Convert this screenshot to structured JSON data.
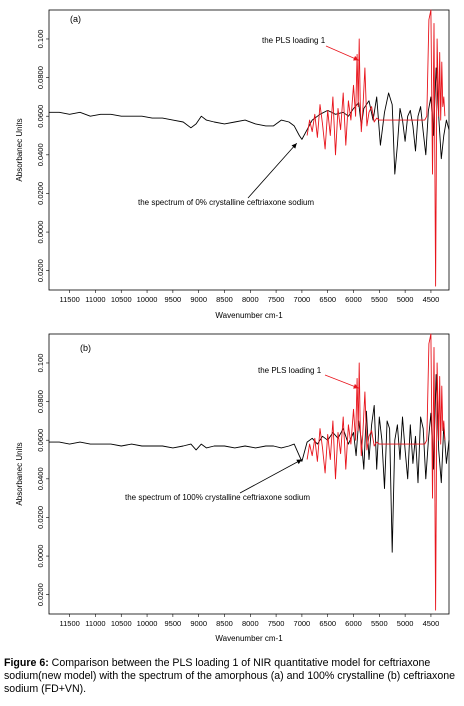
{
  "figure": {
    "caption_label": "Figure 6:",
    "caption_text": " Comparison between the PLS loading 1 of NIR quantitative model for ceftriaxone sodium(new model) with the spectrum of the amorphous (a) and 100% crystalline (b) ceftriaxone sodium (FD+VN)."
  },
  "chart_data": [
    {
      "type": "line",
      "panel_label": "(a)",
      "xlabel": "Wavenumber cm-1",
      "ylabel": "Absorbanec Units",
      "x_reversed": true,
      "xlim": [
        11900,
        4150
      ],
      "ylim": [
        -0.03,
        0.115
      ],
      "x_ticks": [
        11500,
        11000,
        10500,
        10000,
        9500,
        9000,
        8500,
        8000,
        7500,
        7000,
        6500,
        6000,
        5500,
        5000,
        4500
      ],
      "x_tick_labels": [
        "11500",
        "11000",
        "10500",
        "10000",
        "9500",
        "9000",
        "8500",
        "8000",
        "7500",
        "7000",
        "6500",
        "6000",
        "5500",
        "5000",
        "4500"
      ],
      "y_ticks": [
        -0.02,
        0.0,
        0.02,
        0.04,
        0.06,
        0.08,
        0.1
      ],
      "y_tick_labels": [
        "0.0200",
        "0.0000",
        "0.0200",
        "0.0400",
        "0.0600",
        "0.0800",
        "0.100"
      ],
      "series": [
        {
          "color": "#000000",
          "x": [
            11900,
            11700,
            11500,
            11300,
            11100,
            10900,
            10700,
            10500,
            10300,
            10100,
            9900,
            9700,
            9500,
            9300,
            9150,
            9050,
            8950,
            8850,
            8700,
            8500,
            8300,
            8100,
            7900,
            7700,
            7550,
            7400,
            7250,
            7150,
            7050,
            7000,
            6900,
            6800,
            6650,
            6500,
            6350,
            6200,
            6100,
            6000,
            5900,
            5850,
            5800,
            5700,
            5620,
            5550,
            5480,
            5400,
            5320,
            5250,
            5200,
            5150,
            5100,
            5050,
            5000,
            4950,
            4900,
            4850,
            4800,
            4750,
            4700,
            4650,
            4600,
            4550,
            4500,
            4450,
            4400,
            4350,
            4300,
            4250,
            4200,
            4150
          ],
          "y": [
            0.062,
            0.062,
            0.061,
            0.062,
            0.06,
            0.061,
            0.061,
            0.06,
            0.06,
            0.06,
            0.059,
            0.059,
            0.058,
            0.057,
            0.054,
            0.056,
            0.06,
            0.058,
            0.057,
            0.056,
            0.057,
            0.058,
            0.056,
            0.055,
            0.055,
            0.058,
            0.057,
            0.055,
            0.05,
            0.048,
            0.053,
            0.058,
            0.061,
            0.063,
            0.061,
            0.062,
            0.06,
            0.064,
            0.067,
            0.055,
            0.064,
            0.068,
            0.058,
            0.07,
            0.045,
            0.062,
            0.072,
            0.066,
            0.03,
            0.045,
            0.064,
            0.058,
            0.047,
            0.06,
            0.063,
            0.055,
            0.042,
            0.06,
            0.065,
            0.052,
            0.04,
            0.063,
            0.07,
            0.05,
            0.085,
            0.06,
            0.038,
            0.05,
            0.058,
            0.053
          ]
        },
        {
          "color": "#e8141c",
          "x": [
            6900,
            6850,
            6800,
            6750,
            6700,
            6650,
            6600,
            6550,
            6500,
            6450,
            6400,
            6350,
            6300,
            6250,
            6200,
            6150,
            6100,
            6050,
            6000,
            5960,
            5930,
            5910,
            5890,
            5870,
            5850,
            5820,
            5780,
            5740,
            5700,
            5650,
            5600,
            5550,
            5500,
            5450,
            5400,
            5350,
            5300,
            5250,
            5200,
            5150,
            5100,
            5050,
            5000,
            4950,
            4900,
            4850,
            4800,
            4750,
            4700,
            4660,
            4620,
            4580,
            4540,
            4500,
            4470,
            4440,
            4410,
            4380,
            4350,
            4330,
            4310,
            4290,
            4270,
            4250,
            4230
          ],
          "y": [
            0.05,
            0.058,
            0.052,
            0.061,
            0.049,
            0.066,
            0.056,
            0.043,
            0.063,
            0.05,
            0.07,
            0.04,
            0.064,
            0.053,
            0.072,
            0.045,
            0.068,
            0.058,
            0.076,
            0.06,
            0.092,
            0.065,
            0.1,
            0.068,
            0.052,
            0.063,
            0.085,
            0.055,
            0.062,
            0.065,
            0.057,
            0.059,
            0.058,
            0.058,
            0.058,
            0.058,
            0.058,
            0.058,
            0.058,
            0.058,
            0.058,
            0.058,
            0.058,
            0.058,
            0.058,
            0.058,
            0.058,
            0.058,
            0.058,
            0.058,
            0.058,
            0.06,
            0.11,
            0.115,
            0.03,
            0.108,
            -0.028,
            0.1,
            0.06,
            0.093,
            0.058,
            0.088,
            0.065,
            0.07,
            0.06
          ]
        }
      ],
      "annotations": [
        {
          "text": "the PLS loading 1",
          "data_x": 5900,
          "data_y": 0.089,
          "color": "#e8141c"
        },
        {
          "text": "the spectrum of 0% crystalline ceftriaxone sodium",
          "data_x": 7100,
          "data_y": 0.046,
          "color": "#000000"
        }
      ]
    },
    {
      "type": "line",
      "panel_label": "(b)",
      "xlabel": "Wavenumber cm-1",
      "ylabel": "Absorbanec Units",
      "x_reversed": true,
      "xlim": [
        11900,
        4150
      ],
      "ylim": [
        -0.03,
        0.115
      ],
      "x_ticks": [
        11500,
        11000,
        10500,
        10000,
        9500,
        9000,
        8500,
        8000,
        7500,
        7000,
        6500,
        6000,
        5500,
        5000,
        4500
      ],
      "x_tick_labels": [
        "11500",
        "11000",
        "10500",
        "10000",
        "9500",
        "9000",
        "8500",
        "8000",
        "7500",
        "7000",
        "6500",
        "6000",
        "5500",
        "5000",
        "4500"
      ],
      "y_ticks": [
        -0.02,
        0.0,
        0.02,
        0.04,
        0.06,
        0.08,
        0.1
      ],
      "y_tick_labels": [
        "0.0200",
        "0.0000",
        "0.0200",
        "0.0400",
        "0.0600",
        "0.0800",
        "0.100"
      ],
      "series": [
        {
          "color": "#000000",
          "x": [
            11900,
            11700,
            11500,
            11300,
            11100,
            10900,
            10700,
            10500,
            10300,
            10100,
            9900,
            9700,
            9500,
            9300,
            9150,
            9050,
            8950,
            8850,
            8700,
            8500,
            8300,
            8100,
            7900,
            7700,
            7550,
            7400,
            7250,
            7150,
            7050,
            7000,
            6950,
            6900,
            6800,
            6700,
            6600,
            6500,
            6400,
            6300,
            6200,
            6100,
            6000,
            5950,
            5900,
            5850,
            5800,
            5750,
            5700,
            5650,
            5600,
            5550,
            5500,
            5450,
            5400,
            5350,
            5300,
            5250,
            5200,
            5150,
            5100,
            5050,
            5000,
            4950,
            4900,
            4850,
            4800,
            4750,
            4700,
            4650,
            4600,
            4550,
            4500,
            4450,
            4400,
            4350,
            4300,
            4250,
            4200,
            4150
          ],
          "y": [
            0.059,
            0.059,
            0.058,
            0.059,
            0.058,
            0.058,
            0.058,
            0.057,
            0.058,
            0.057,
            0.057,
            0.057,
            0.056,
            0.057,
            0.058,
            0.055,
            0.058,
            0.056,
            0.057,
            0.057,
            0.056,
            0.057,
            0.056,
            0.057,
            0.057,
            0.056,
            0.057,
            0.058,
            0.052,
            0.049,
            0.054,
            0.059,
            0.061,
            0.058,
            0.062,
            0.06,
            0.064,
            0.061,
            0.066,
            0.058,
            0.064,
            0.052,
            0.07,
            0.06,
            0.045,
            0.075,
            0.05,
            0.068,
            0.078,
            0.045,
            0.072,
            0.06,
            0.035,
            0.07,
            0.066,
            0.002,
            0.06,
            0.068,
            0.05,
            0.072,
            0.055,
            0.04,
            0.068,
            0.048,
            0.062,
            0.038,
            0.072,
            0.066,
            0.04,
            0.06,
            0.074,
            0.045,
            0.094,
            0.055,
            0.038,
            0.068,
            0.048,
            0.06
          ]
        },
        {
          "color": "#e8141c",
          "x": [
            6900,
            6850,
            6800,
            6750,
            6700,
            6650,
            6600,
            6550,
            6500,
            6450,
            6400,
            6350,
            6300,
            6250,
            6200,
            6150,
            6100,
            6050,
            6000,
            5960,
            5930,
            5910,
            5890,
            5870,
            5850,
            5820,
            5780,
            5740,
            5700,
            5650,
            5600,
            5550,
            5500,
            5450,
            5400,
            5350,
            5300,
            5250,
            5200,
            5150,
            5100,
            5050,
            5000,
            4950,
            4900,
            4850,
            4800,
            4750,
            4700,
            4660,
            4620,
            4580,
            4540,
            4500,
            4470,
            4440,
            4410,
            4380,
            4350,
            4330,
            4310,
            4290,
            4270,
            4250,
            4230
          ],
          "y": [
            0.05,
            0.058,
            0.052,
            0.061,
            0.049,
            0.066,
            0.056,
            0.043,
            0.063,
            0.05,
            0.07,
            0.04,
            0.064,
            0.053,
            0.072,
            0.045,
            0.068,
            0.058,
            0.076,
            0.06,
            0.092,
            0.065,
            0.1,
            0.068,
            0.052,
            0.063,
            0.085,
            0.055,
            0.062,
            0.065,
            0.057,
            0.059,
            0.058,
            0.058,
            0.058,
            0.058,
            0.058,
            0.058,
            0.058,
            0.058,
            0.058,
            0.058,
            0.058,
            0.058,
            0.058,
            0.058,
            0.058,
            0.058,
            0.058,
            0.058,
            0.058,
            0.06,
            0.11,
            0.115,
            0.03,
            0.108,
            -0.028,
            0.1,
            0.06,
            0.093,
            0.058,
            0.088,
            0.065,
            0.07,
            0.06
          ]
        }
      ],
      "annotations": [
        {
          "text": "the PLS loading 1",
          "data_x": 5900,
          "data_y": 0.087,
          "color": "#e8141c"
        },
        {
          "text": "the spectrum of 100% crystalline ceftriaxone sodium",
          "data_x": 7000,
          "data_y": 0.05,
          "color": "#000000"
        }
      ]
    }
  ]
}
